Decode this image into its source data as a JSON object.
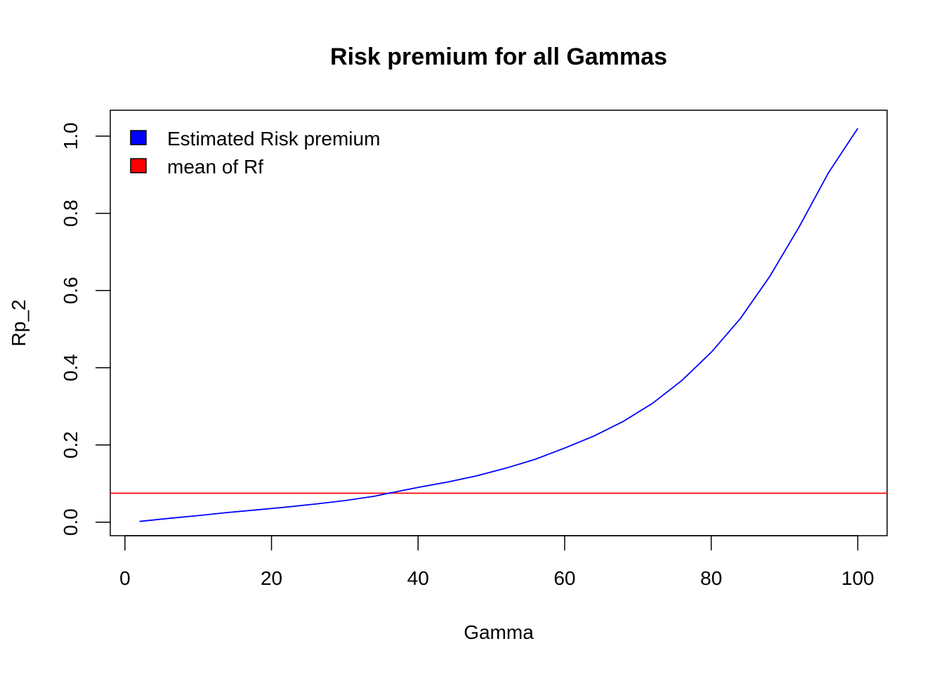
{
  "chart_data": {
    "type": "line",
    "title": "Risk premium for all Gammas",
    "xlabel": "Gamma",
    "ylabel": "Rp_2",
    "xlim": [
      -2,
      104
    ],
    "ylim": [
      -0.035,
      1.067
    ],
    "xticks": [
      0,
      20,
      40,
      60,
      80,
      100
    ],
    "xtick_labels": [
      "0",
      "20",
      "40",
      "60",
      "80",
      "100"
    ],
    "yticks": [
      0.0,
      0.2,
      0.4,
      0.6,
      0.8,
      1.0
    ],
    "ytick_labels": [
      "0.0",
      "0.2",
      "0.4",
      "0.6",
      "0.8",
      "1.0"
    ],
    "grid": false,
    "legend_position": "top-left",
    "legend": [
      {
        "label": "Estimated Risk premium",
        "color": "#0000ff"
      },
      {
        "label": "mean of Rf",
        "color": "#ff0000"
      }
    ],
    "series": [
      {
        "color": "#0000ff",
        "x": [
          2,
          6,
          10,
          14,
          18,
          22,
          26,
          30,
          34,
          36,
          40,
          44,
          48,
          52,
          56,
          60,
          64,
          68,
          72,
          76,
          80,
          84,
          88,
          92,
          96,
          100
        ],
        "y": [
          0.002,
          0.01,
          0.017,
          0.025,
          0.032,
          0.039,
          0.047,
          0.056,
          0.067,
          0.075,
          0.09,
          0.104,
          0.12,
          0.14,
          0.163,
          0.192,
          0.223,
          0.261,
          0.308,
          0.367,
          0.44,
          0.528,
          0.637,
          0.765,
          0.905,
          1.02
        ]
      }
    ],
    "hlines": [
      {
        "y": 0.075,
        "color": "#ff0000"
      }
    ]
  }
}
